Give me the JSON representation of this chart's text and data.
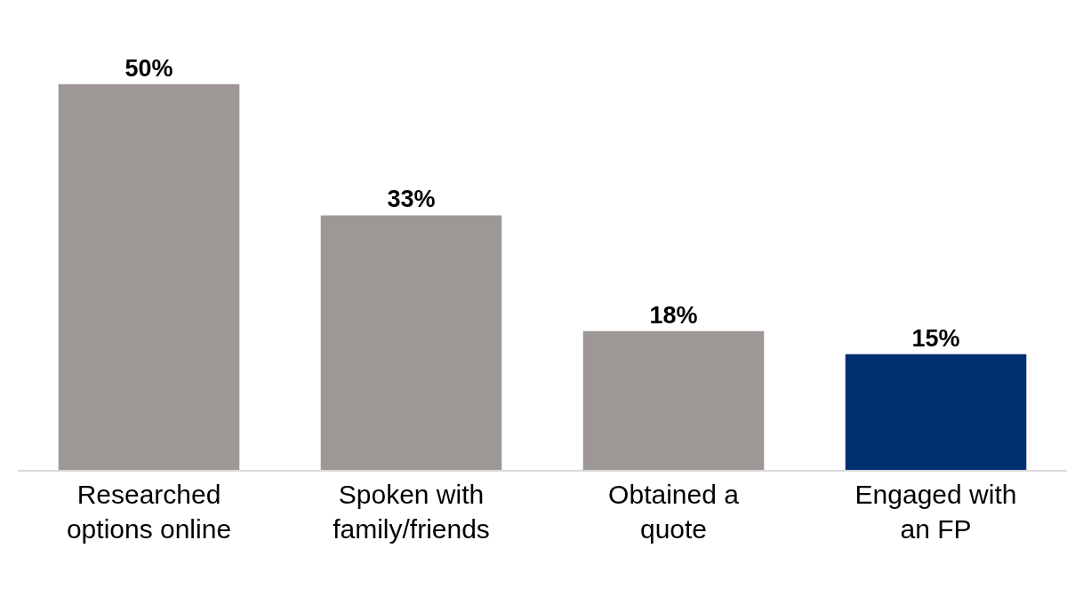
{
  "chart_data": {
    "type": "bar",
    "categories": [
      "Researched options online",
      "Spoken with family/friends",
      "Obtained a quote",
      "Engaged with an FP"
    ],
    "values": [
      50,
      33,
      18,
      15
    ],
    "colors": [
      "#9d9895",
      "#9d9895",
      "#9d9895",
      "#003070"
    ],
    "data_labels": true,
    "value_labels": [
      "50%",
      "33%",
      "18%",
      "15%"
    ],
    "grid": false,
    "legend": false
  }
}
